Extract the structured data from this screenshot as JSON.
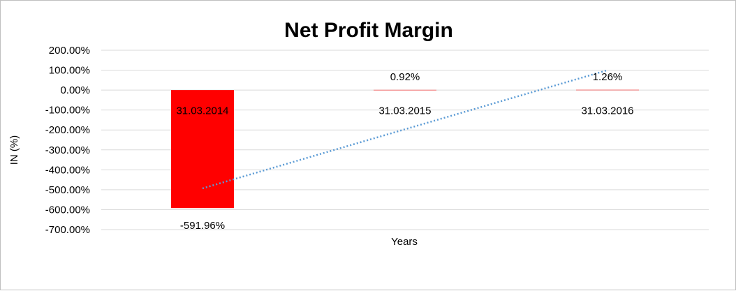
{
  "chart_data": {
    "type": "bar",
    "title": "Net Profit Margin",
    "xlabel": "Years",
    "ylabel": "IN (%)",
    "categories": [
      "31.03.2014",
      "31.03.2015",
      "31.03.2016"
    ],
    "values": [
      -591.96,
      0.92,
      1.26
    ],
    "data_labels": [
      "-591.96%",
      "0.92%",
      "1.26%"
    ],
    "ylim": [
      -700,
      200
    ],
    "yticks": [
      200,
      100,
      0,
      -100,
      -200,
      -300,
      -400,
      -500,
      -600,
      -700
    ],
    "ytick_labels": [
      "200.00%",
      "100.00%",
      "0.00%",
      "-100.00%",
      "-200.00%",
      "-300.00%",
      "-400.00%",
      "-500.00%",
      "-600.00%",
      "-700.00%"
    ],
    "grid": true,
    "legend": "none",
    "trendline": {
      "type": "linear",
      "style": "dotted",
      "color": "#5b9bd5"
    },
    "colors": {
      "bar_negative": "#ff0000",
      "gridline": "#d9d9d9",
      "trendline": "#5b9bd5"
    }
  }
}
